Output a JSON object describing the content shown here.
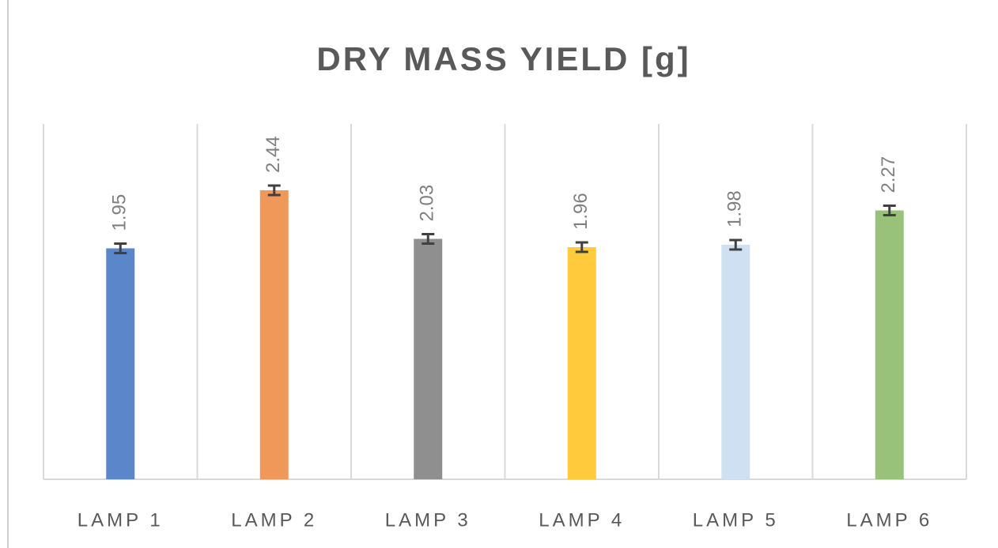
{
  "chart_data": {
    "type": "bar",
    "title": "DRY MASS YIELD [g]",
    "categories": [
      "LAMP 1",
      "LAMP 2",
      "LAMP 3",
      "LAMP 4",
      "LAMP 5",
      "LAMP 6"
    ],
    "values": [
      1.95,
      2.44,
      2.03,
      1.96,
      1.98,
      2.27
    ],
    "errors": [
      0.04,
      0.04,
      0.04,
      0.04,
      0.04,
      0.04
    ],
    "colors": [
      "#5b86c9",
      "#f0975a",
      "#8f8f8f",
      "#ffcb3d",
      "#cfe0f3",
      "#98c17a"
    ],
    "ylim": [
      0,
      3
    ]
  }
}
